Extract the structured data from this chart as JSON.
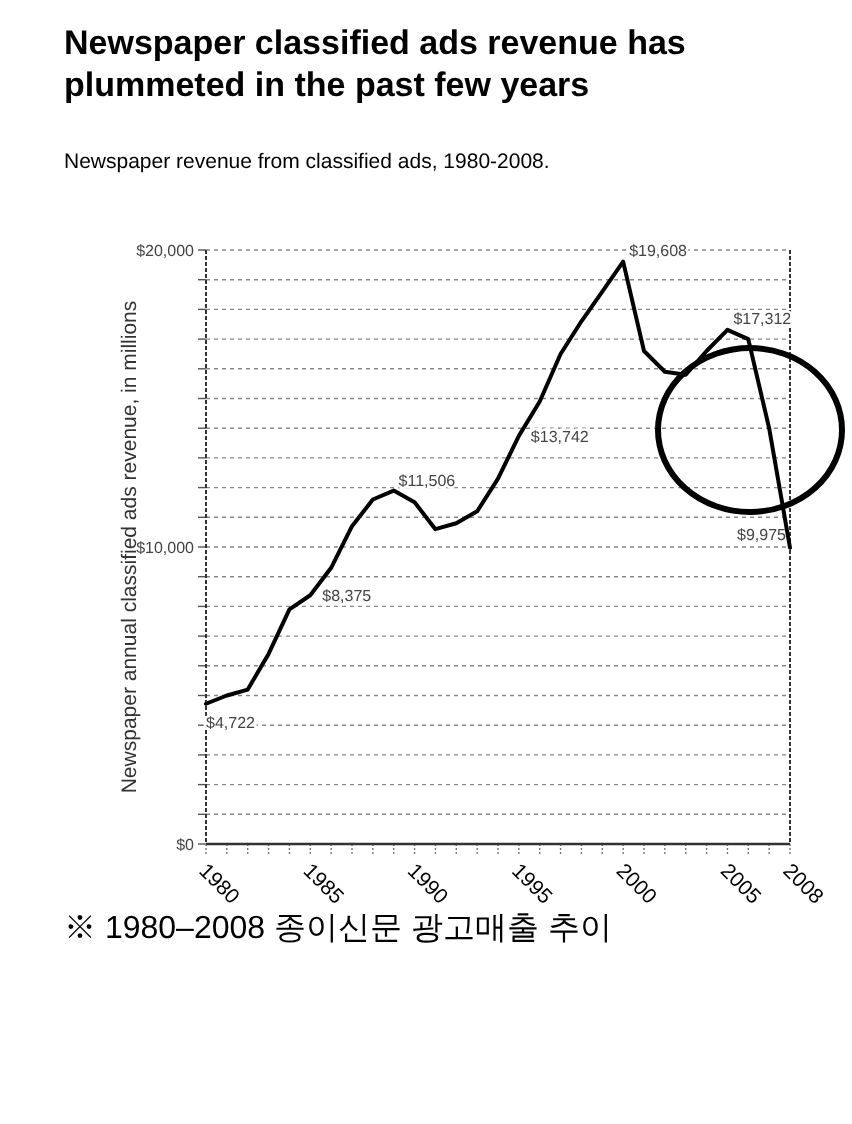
{
  "chart_data": {
    "type": "line",
    "title": "Newspaper classified ads revenue has plummeted in the past few years",
    "subtitle": "Newspaper revenue from classified ads, 1980-2008.",
    "ylabel": "Newspaper annual classified ads revenue, in millions",
    "annotations": [
      "※ 1980–2008 종이신문 광고매출 추이"
    ],
    "x": [
      1980,
      1981,
      1982,
      1983,
      1984,
      1985,
      1986,
      1987,
      1988,
      1989,
      1990,
      1991,
      1992,
      1993,
      1994,
      1995,
      1996,
      1997,
      1998,
      1999,
      2000,
      2001,
      2002,
      2003,
      2004,
      2005,
      2006,
      2007,
      2008
    ],
    "series": [
      {
        "color": "#000000",
        "values": [
          4722,
          5000,
          5200,
          6400,
          7900,
          8375,
          9300,
          10700,
          11600,
          11900,
          11506,
          10600,
          10800,
          11200,
          12300,
          13742,
          14900,
          16500,
          17600,
          18600,
          19608,
          16600,
          15900,
          15800,
          16600,
          17312,
          17000,
          14000,
          9975
        ],
        "value_labels": [
          "$4,722",
          null,
          null,
          null,
          null,
          "$8,375",
          null,
          null,
          null,
          null,
          "$11,506",
          null,
          null,
          null,
          null,
          "$13,742",
          null,
          null,
          null,
          null,
          "$19,608",
          null,
          null,
          null,
          null,
          "$17,312",
          null,
          null,
          "$9,975"
        ]
      }
    ],
    "xlim": [
      1980,
      2008
    ],
    "xticks": [
      1980,
      {
        "value": 1981,
        "label": null
      },
      {
        "value": 1982,
        "label": null
      },
      {
        "value": 1983,
        "label": null
      },
      {
        "value": 1984,
        "label": null
      },
      1985,
      {
        "value": 1986,
        "label": null
      },
      {
        "value": 1987,
        "label": null
      },
      {
        "value": 1988,
        "label": null
      },
      {
        "value": 1989,
        "label": null
      },
      1990,
      {
        "value": 1991,
        "label": null
      },
      {
        "value": 1992,
        "label": null
      },
      {
        "value": 1993,
        "label": null
      },
      {
        "value": 1994,
        "label": null
      },
      1995,
      {
        "value": 1996,
        "label": null
      },
      {
        "value": 1997,
        "label": null
      },
      {
        "value": 1998,
        "label": null
      },
      {
        "value": 1999,
        "label": null
      },
      2000,
      {
        "value": 2001,
        "label": null
      },
      {
        "value": 2002,
        "label": null
      },
      {
        "value": 2003,
        "label": null
      },
      {
        "value": 2004,
        "label": null
      },
      2005,
      {
        "value": 2006,
        "label": null
      },
      {
        "value": 2007,
        "label": null
      },
      2008
    ],
    "ylim": [
      0,
      20000
    ],
    "yticks": [
      {
        "value": 0,
        "label": "$0"
      },
      {
        "value": 1000,
        "label": null
      },
      {
        "value": 2000,
        "label": null
      },
      {
        "value": 3000,
        "label": null
      },
      {
        "value": 4000,
        "label": null
      },
      {
        "value": 5000,
        "label": null
      },
      {
        "value": 6000,
        "label": null
      },
      {
        "value": 7000,
        "label": null
      },
      {
        "value": 8000,
        "label": null
      },
      {
        "value": 9000,
        "label": null
      },
      {
        "value": 10000,
        "label": "$10,000"
      },
      {
        "value": 11000,
        "label": null
      },
      {
        "value": 12000,
        "label": null
      },
      {
        "value": 13000,
        "label": null
      },
      {
        "value": 14000,
        "label": null
      },
      {
        "value": 15000,
        "label": null
      },
      {
        "value": 16000,
        "label": null
      },
      {
        "value": 17000,
        "label": null
      },
      {
        "value": 18000,
        "label": null
      },
      {
        "value": 19000,
        "label": null
      },
      {
        "value": 20000,
        "label": "$20,000"
      }
    ],
    "grid": "y",
    "marker": "none",
    "line_style": "solid"
  }
}
